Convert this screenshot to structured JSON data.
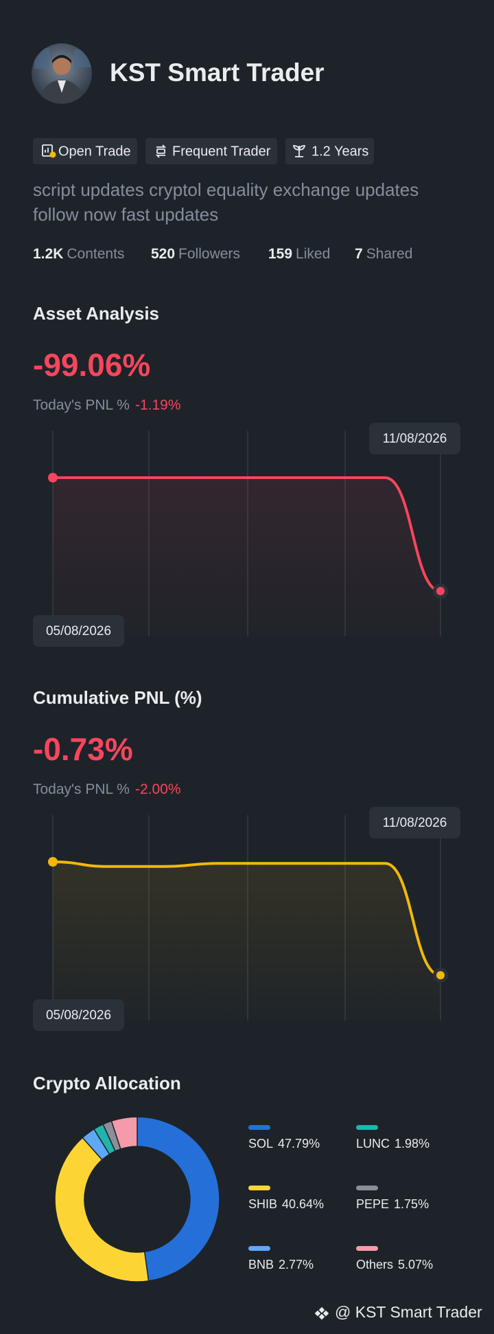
{
  "profile": {
    "name": "KST Smart Trader",
    "tags": [
      "Open Trade",
      "Frequent Trader",
      "1.2 Years"
    ],
    "bio": [
      "script updates cryptol equality exchange updates",
      "follow now fast updates"
    ],
    "stats": [
      {
        "value": "1.2K",
        "label": "Contents"
      },
      {
        "value": "520",
        "label": "Followers"
      },
      {
        "value": "159",
        "label": "Liked"
      },
      {
        "value": "7",
        "label": "Shared"
      }
    ]
  },
  "sections": [
    {
      "title": "Asset Analysis",
      "pnl": "-99.06%",
      "today_label": "Today's PNL %",
      "today_value": "-1.19%"
    },
    {
      "title": "Cumulative PNL (%)",
      "pnl": "-0.73%",
      "today_label": "Today's PNL %",
      "today_value": "-2.00%"
    }
  ],
  "chart_data": [
    {
      "type": "line",
      "categories": [
        "05/08/2026",
        null,
        null,
        null,
        null,
        null,
        null,
        "11/08/2026"
      ],
      "values": [
        0,
        0,
        0,
        0,
        0,
        0,
        0,
        -99.06
      ],
      "color": "#f6465d"
    },
    {
      "type": "line",
      "categories": [
        "05/08/2026",
        null,
        null,
        null,
        null,
        null,
        null,
        "11/08/2026"
      ],
      "values": [
        0,
        -0.03,
        -0.03,
        -0.01,
        -0.01,
        -0.01,
        -0.01,
        -0.73
      ],
      "color": "#f0b90b"
    },
    {
      "type": "pie",
      "title": "Crypto Allocation",
      "categories": [
        "SOL",
        "SHIB",
        "BNB",
        "LUNC",
        "PEPE",
        "Others"
      ],
      "values": [
        47.79,
        40.64,
        2.77,
        1.98,
        1.75,
        5.07
      ],
      "value_labels": [
        "47.79%",
        "40.64%",
        "2.77%",
        "1.98%",
        "1.75%",
        "5.07%"
      ],
      "colors": [
        "#2470d8",
        "#fcd535",
        "#5fa8f5",
        "#1fb5ad",
        "#8a8f99",
        "#f59aaa"
      ]
    }
  ],
  "footer": "@ KST Smart Trader"
}
